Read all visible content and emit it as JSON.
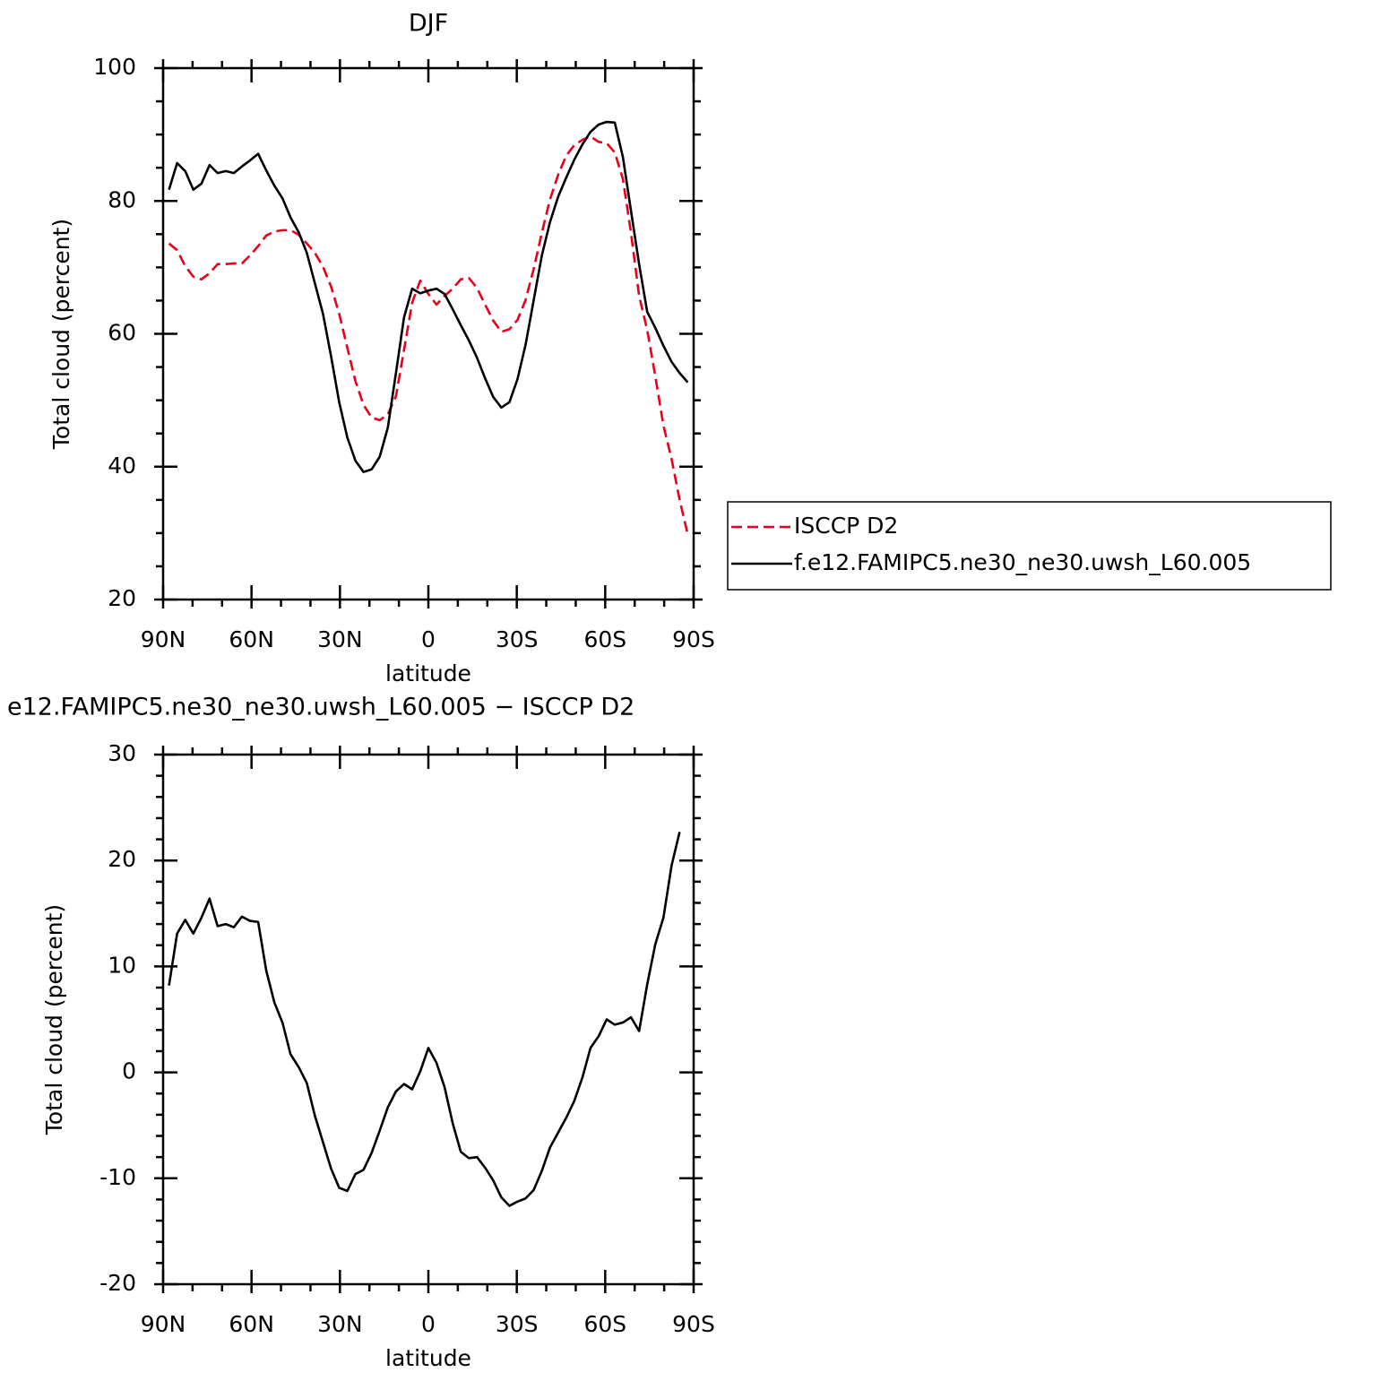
{
  "chart_data": [
    {
      "type": "line",
      "title": "DJF",
      "x_label": "latitude",
      "y_label": "Total cloud (percent)",
      "xlim": [
        90,
        -90
      ],
      "ylim": [
        20,
        100
      ],
      "xticks": [
        {
          "value": 90,
          "label": "90N"
        },
        {
          "value": 60,
          "label": "60N"
        },
        {
          "value": 30,
          "label": "30N"
        },
        0,
        {
          "value": -30,
          "label": "30S"
        },
        {
          "value": -60,
          "label": "60S"
        },
        {
          "value": -90,
          "label": "90S"
        }
      ],
      "xminorticks": [
        80,
        70,
        50,
        40,
        20,
        10,
        -10,
        -20,
        -40,
        -50,
        -70,
        -80
      ],
      "yticks": [
        20,
        40,
        60,
        80,
        100
      ],
      "yminorticks": [
        25,
        30,
        35,
        45,
        50,
        55,
        65,
        70,
        75,
        85,
        90,
        95
      ],
      "legend": "right",
      "x": [
        88,
        85.25,
        82.5,
        79.75,
        77,
        74.25,
        71.5,
        68.75,
        66,
        63.25,
        60.5,
        57.75,
        55,
        52.25,
        49.5,
        46.75,
        44,
        41.25,
        38.5,
        35.75,
        33,
        30.25,
        27.5,
        24.75,
        22,
        19.25,
        16.5,
        13.75,
        11,
        8.25,
        5.5,
        2.75,
        0,
        -2.75,
        -5.5,
        -8.25,
        -11,
        -13.75,
        -16.5,
        -19.25,
        -22,
        -24.75,
        -27.5,
        -30.25,
        -33,
        -35.75,
        -38.5,
        -41.25,
        -44,
        -46.75,
        -49.5,
        -52.25,
        -55,
        -57.75,
        -60.5,
        -63.25,
        -66,
        -68.75,
        -71.5,
        -74.25,
        -77,
        -79.75,
        -82.5,
        -85.25,
        -88
      ],
      "series": [
        {
          "name": "ISCCP D2",
          "color": "#e8001c",
          "line_style": "dashed",
          "values": [
            73.6,
            72.6,
            70.2,
            68.6,
            68.2,
            69.1,
            70.5,
            70.5,
            70.6,
            70.6,
            71.8,
            73.2,
            74.8,
            75.4,
            75.6,
            75.6,
            74.9,
            73.6,
            72.2,
            70.1,
            67.1,
            63.0,
            57.9,
            52.9,
            49.3,
            47.4,
            47.0,
            47.9,
            50.6,
            57.6,
            64.7,
            68.0,
            66.0,
            64.4,
            65.7,
            66.8,
            68.2,
            68.4,
            66.9,
            64.4,
            62.0,
            60.3,
            60.7,
            62.1,
            65.1,
            69.8,
            75.2,
            80.2,
            83.9,
            86.8,
            88.4,
            89.2,
            89.7,
            88.9,
            88.7,
            87.3,
            83.3,
            75.2,
            65.7,
            60.6,
            53.6,
            46.2,
            41.2,
            35.0,
            29.8
          ]
        },
        {
          "name": "f.e12.FAMIPC5.ne30_ne30.uwsh_L60.005",
          "color": "#000000",
          "line_style": "solid",
          "values": [
            81.7,
            85.7,
            84.5,
            81.7,
            82.6,
            85.4,
            84.2,
            84.5,
            84.2,
            85.2,
            86.1,
            87.1,
            84.6,
            82.3,
            80.4,
            77.5,
            75.3,
            72.2,
            67.6,
            63.0,
            56.6,
            49.7,
            44.4,
            40.9,
            39.2,
            39.6,
            41.5,
            45.9,
            54.1,
            62.5,
            66.8,
            66.1,
            66.5,
            66.8,
            66.0,
            63.7,
            61.3,
            59.0,
            56.4,
            53.3,
            50.5,
            48.9,
            49.7,
            53.2,
            58.4,
            65.1,
            71.8,
            76.8,
            80.6,
            83.5,
            86.2,
            88.5,
            90.4,
            91.5,
            91.9,
            91.8,
            86.6,
            78.5,
            70.5,
            63.3,
            60.9,
            58.2,
            55.8,
            54.1,
            52.7
          ]
        }
      ]
    },
    {
      "type": "line",
      "title": "e12.FAMIPC5.ne30_ne30.uwsh_L60.005 − ISCCP D2",
      "x_label": "latitude",
      "y_label": "Total cloud (percent)",
      "xlim": [
        90,
        -90
      ],
      "ylim": [
        -20,
        30
      ],
      "xticks": [
        {
          "value": 90,
          "label": "90N"
        },
        {
          "value": 60,
          "label": "60N"
        },
        {
          "value": 30,
          "label": "30N"
        },
        0,
        {
          "value": -30,
          "label": "30S"
        },
        {
          "value": -60,
          "label": "60S"
        },
        {
          "value": -90,
          "label": "90S"
        }
      ],
      "xminorticks": [
        80,
        70,
        50,
        40,
        20,
        10,
        -10,
        -20,
        -40,
        -50,
        -70,
        -80
      ],
      "yticks": [
        -20,
        -10,
        0,
        10,
        20,
        30
      ],
      "yminorticks": [
        -18,
        -16,
        -14,
        -12,
        -8,
        -6,
        -4,
        -2,
        2,
        4,
        6,
        8,
        12,
        14,
        16,
        18,
        22,
        24,
        26,
        28
      ],
      "color": "#000000",
      "x": [
        88,
        85.25,
        82.5,
        79.75,
        77,
        74.25,
        71.5,
        68.75,
        66,
        63.25,
        60.5,
        57.75,
        55,
        52.25,
        49.5,
        46.75,
        44,
        41.25,
        38.5,
        35.75,
        33,
        30.25,
        27.5,
        24.75,
        22,
        19.25,
        16.5,
        13.75,
        11,
        8.25,
        5.5,
        2.75,
        0,
        -2.75,
        -5.5,
        -8.25,
        -11,
        -13.75,
        -16.5,
        -19.25,
        -22,
        -24.75,
        -27.5,
        -30.25,
        -33,
        -35.75,
        -38.5,
        -41.25,
        -44,
        -46.75,
        -49.5,
        -52.25,
        -55,
        -57.75,
        -60.5,
        -63.25,
        -66,
        -68.75,
        -71.5,
        -74.25,
        -77,
        -79.75,
        -82.5,
        -85.25
      ],
      "values": [
        8.2,
        13.1,
        14.4,
        13.1,
        14.6,
        16.4,
        13.8,
        14.0,
        13.7,
        14.7,
        14.3,
        14.2,
        9.6,
        6.6,
        4.7,
        1.7,
        0.5,
        -1.0,
        -4.1,
        -6.6,
        -9.1,
        -10.9,
        -11.2,
        -9.6,
        -9.2,
        -7.6,
        -5.5,
        -3.3,
        -1.8,
        -1.1,
        -1.6,
        0.1,
        2.3,
        0.9,
        -1.4,
        -4.8,
        -7.5,
        -8.1,
        -8.0,
        -9.0,
        -10.2,
        -11.8,
        -12.6,
        -12.2,
        -11.9,
        -11.1,
        -9.3,
        -7.1,
        -5.7,
        -4.3,
        -2.7,
        -0.5,
        2.3,
        3.4,
        5.0,
        4.5,
        4.7,
        5.2,
        3.9,
        8.3,
        12.1,
        14.6,
        19.5,
        22.7
      ]
    }
  ]
}
